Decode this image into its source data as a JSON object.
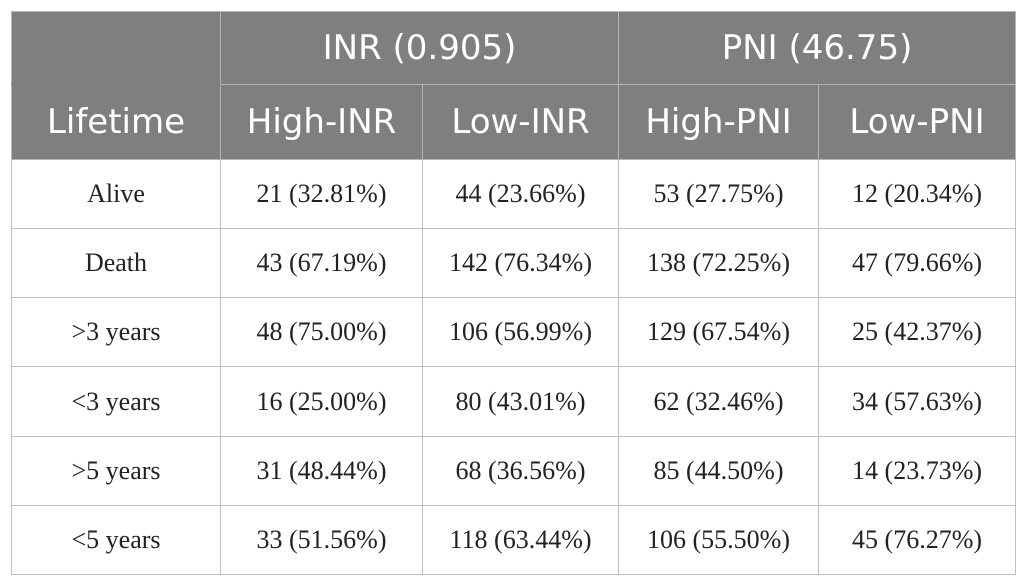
{
  "header": {
    "lifetime": "Lifetime",
    "groups": [
      {
        "label": "INR (0.905)",
        "subs": [
          "High-INR",
          "Low-INR"
        ]
      },
      {
        "label": "PNI (46.75)",
        "subs": [
          "High-PNI",
          "Low-PNI"
        ]
      }
    ]
  },
  "rows": [
    {
      "label": "Alive",
      "cells": [
        "21 (32.81%)",
        "44 (23.66%)",
        "53 (27.75%)",
        "12 (20.34%)"
      ]
    },
    {
      "label": "Death",
      "cells": [
        "43 (67.19%)",
        "142 (76.34%)",
        "138 (72.25%)",
        "47 (79.66%)"
      ]
    },
    {
      "label": ">3 years",
      "cells": [
        "48 (75.00%)",
        "106 (56.99%)",
        "129 (67.54%)",
        "25 (42.37%)"
      ]
    },
    {
      "label": "<3 years",
      "cells": [
        "16 (25.00%)",
        "80 (43.01%)",
        "62 (32.46%)",
        "34 (57.63%)"
      ]
    },
    {
      "label": ">5 years",
      "cells": [
        "31 (48.44%)",
        "68 (36.56%)",
        "85 (44.50%)",
        "14 (23.73%)"
      ]
    },
    {
      "label": "<5 years",
      "cells": [
        "33 (51.56%)",
        "118 (63.44%)",
        "106 (55.50%)",
        "45 (76.27%)"
      ]
    }
  ]
}
